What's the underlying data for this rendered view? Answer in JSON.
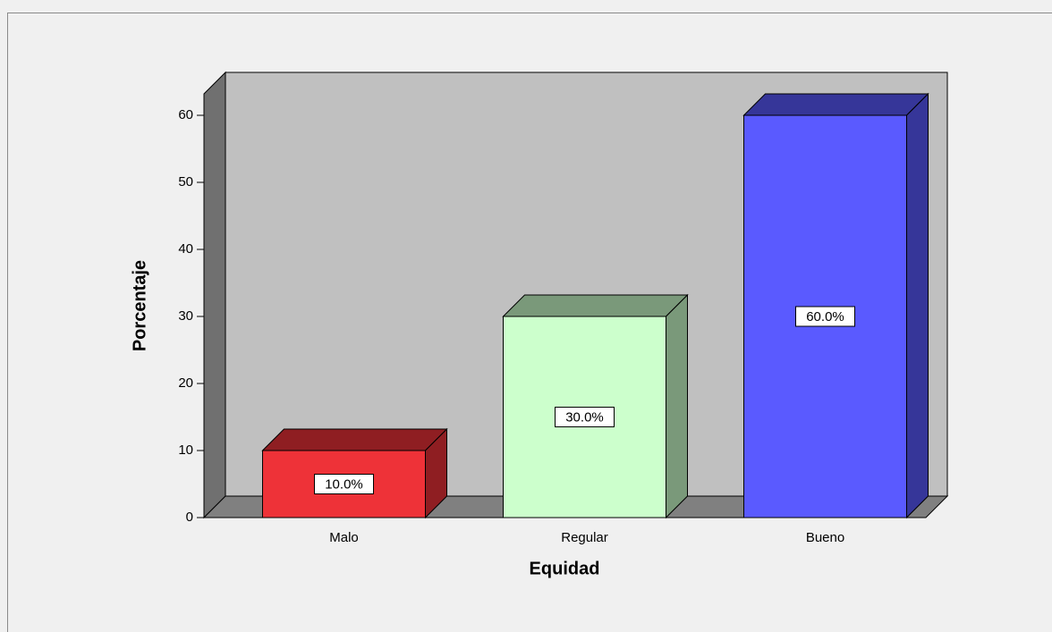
{
  "chart_data": {
    "type": "bar3d",
    "x_label": "Equidad",
    "y_label": "Porcentaje",
    "categories": [
      "Malo",
      "Regular",
      "Bueno"
    ],
    "values": [
      10,
      30,
      60
    ],
    "value_labels": [
      "10.0%",
      "30.0%",
      "60.0%"
    ],
    "colors": [
      "#ee3238",
      "#ccffcc",
      "#5a5aff"
    ],
    "ylim": [
      0,
      63.2
    ],
    "yticks": [
      0,
      10,
      20,
      30,
      40,
      50,
      60
    ]
  }
}
